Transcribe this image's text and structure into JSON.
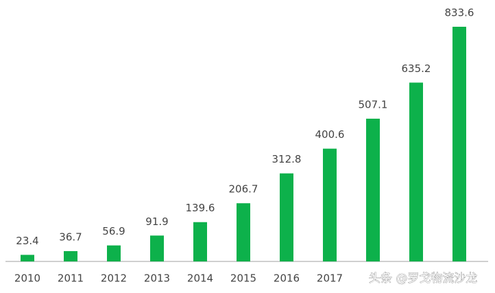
{
  "chart_data": {
    "type": "bar",
    "categories": [
      "2010",
      "2011",
      "2012",
      "2013",
      "2014",
      "2015",
      "2016",
      "2017",
      null,
      null,
      null
    ],
    "values": [
      23.4,
      36.7,
      56.9,
      91.9,
      139.6,
      206.7,
      312.8,
      400.6,
      507.1,
      635.2,
      833.6
    ],
    "color": "#0db14b"
  },
  "watermark": "头条 @罗戈物流沙龙"
}
